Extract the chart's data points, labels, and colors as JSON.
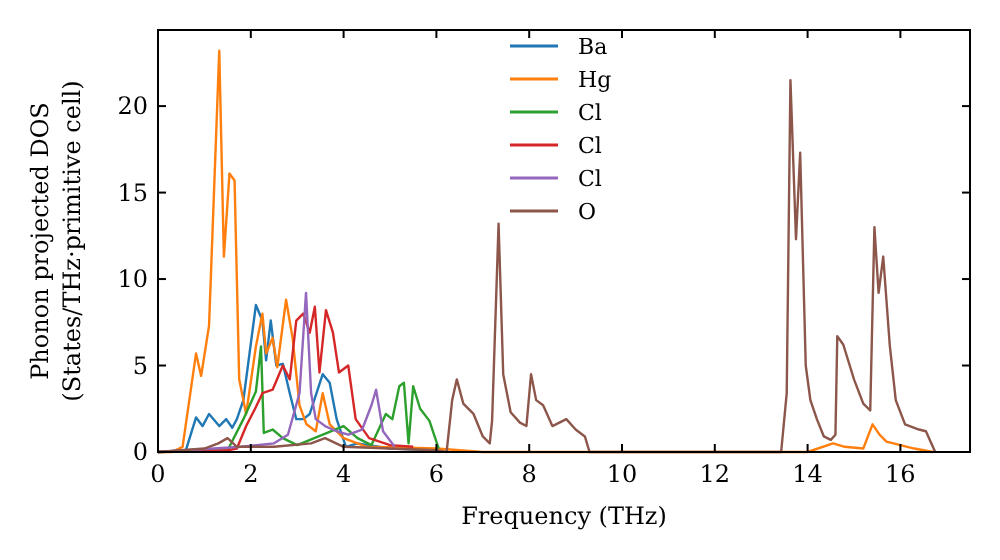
{
  "chart_data": {
    "type": "line",
    "xlabel": "Frequency (THz)",
    "ylabel": "Phonon projected DOS\n(States/THz·primitive cell)",
    "xlim": [
      0,
      17.5
    ],
    "ylim": [
      0,
      24.4
    ],
    "xticks": [
      0,
      2,
      4,
      6,
      8,
      10,
      12,
      14,
      16
    ],
    "yticks": [
      0,
      5,
      10,
      15,
      20
    ],
    "grid": false,
    "legend": "top",
    "marker": "none",
    "line_style": "solid",
    "series": [
      {
        "name": "Ba",
        "color": "#1f77b4",
        "x": [
          0,
          0.6,
          0.82,
          0.96,
          1.1,
          1.32,
          1.47,
          1.6,
          1.7,
          1.84,
          2.11,
          2.25,
          2.33,
          2.43,
          2.55,
          2.69,
          2.84,
          2.98,
          3.13,
          3.27,
          3.55,
          3.7,
          3.85,
          4.05,
          4.3,
          5,
          6
        ],
        "values": [
          0,
          0.1,
          2.0,
          1.5,
          2.2,
          1.5,
          1.9,
          1.4,
          1.9,
          3.0,
          8.5,
          7.6,
          5.3,
          7.6,
          5.0,
          5.1,
          3.4,
          1.9,
          1.9,
          2.2,
          4.5,
          4.0,
          1.9,
          0.3,
          0.5,
          0.2,
          0.1
        ]
      },
      {
        "name": "Hg",
        "color": "#ff7f0e",
        "x": [
          0,
          0.3,
          0.53,
          0.82,
          0.93,
          1.1,
          1.32,
          1.42,
          1.54,
          1.65,
          1.75,
          1.9,
          2.11,
          2.25,
          2.33,
          2.47,
          2.57,
          2.76,
          2.9,
          3.05,
          3.2,
          3.4,
          3.55,
          3.7,
          4.0,
          4.5,
          6,
          7,
          14,
          14.55,
          14.8,
          15.2,
          15.4,
          15.55,
          15.7,
          16.3,
          16.7
        ],
        "values": [
          0,
          0,
          0.3,
          5.7,
          4.4,
          7.3,
          23.2,
          11.3,
          16.1,
          15.7,
          4.2,
          2.2,
          6.1,
          8.0,
          5.7,
          6.6,
          4.9,
          8.8,
          6.6,
          2.7,
          1.6,
          1.2,
          3.4,
          1.6,
          0.8,
          0.3,
          0.2,
          0,
          0,
          0.5,
          0.3,
          0.2,
          1.6,
          1.0,
          0.6,
          0.2,
          0
        ]
      },
      {
        "name": "Cl",
        "color": "#2ca02c",
        "x": [
          0,
          1.5,
          1.84,
          2.11,
          2.22,
          2.28,
          2.47,
          2.69,
          3.0,
          4.0,
          4.3,
          4.6,
          4.91,
          5.05,
          5.2,
          5.3,
          5.4,
          5.5,
          5.65,
          5.85,
          6.05
        ],
        "values": [
          0,
          0.1,
          1.9,
          3.5,
          6.1,
          1.1,
          1.3,
          0.8,
          0.4,
          1.5,
          0.8,
          0.4,
          2.2,
          1.9,
          3.8,
          4.0,
          0.5,
          3.8,
          2.5,
          1.8,
          0.2
        ]
      },
      {
        "name": "Cl",
        "color": "#d62728",
        "x": [
          0,
          1.5,
          1.7,
          1.9,
          2.11,
          2.25,
          2.47,
          2.69,
          2.84,
          2.98,
          3.13,
          3.27,
          3.38,
          3.48,
          3.62,
          3.77,
          3.9,
          4.1,
          4.26,
          4.55,
          5,
          5.5
        ],
        "values": [
          0,
          0.1,
          0.2,
          1.5,
          2.6,
          3.4,
          3.6,
          5.0,
          4.2,
          7.6,
          8.0,
          6.9,
          8.4,
          4.6,
          8.2,
          6.9,
          4.6,
          5.0,
          1.9,
          0.8,
          0.4,
          0.3
        ]
      },
      {
        "name": "Cl",
        "color": "#9467bd",
        "x": [
          0,
          1.8,
          2.5,
          2.8,
          3.05,
          3.19,
          3.3,
          3.4,
          3.6,
          3.85,
          4.1,
          4.4,
          4.6,
          4.7,
          4.85,
          5.1
        ],
        "values": [
          0,
          0.3,
          0.5,
          1.0,
          3.4,
          9.2,
          3.4,
          1.9,
          1.5,
          1.2,
          1.0,
          1.3,
          2.7,
          3.6,
          1.2,
          0.3
        ]
      },
      {
        "name": "O",
        "color": "#8c564b",
        "x": [
          0,
          1.0,
          1.3,
          1.5,
          1.7,
          2.5,
          3.3,
          3.6,
          4.0,
          5.0,
          6.0,
          6.22,
          6.34,
          6.44,
          6.58,
          6.8,
          7.0,
          7.15,
          7.2,
          7.34,
          7.44,
          7.6,
          7.8,
          7.94,
          8.04,
          8.15,
          8.3,
          8.5,
          8.8,
          9.0,
          9.2,
          9.3,
          13.43,
          13.55,
          13.63,
          13.75,
          13.84,
          13.96,
          14.06,
          14.2,
          14.35,
          14.5,
          14.6,
          14.64,
          14.77,
          15.0,
          15.2,
          15.35,
          15.44,
          15.53,
          15.63,
          15.77,
          15.9,
          16.1,
          16.4,
          16.55,
          16.75
        ],
        "values": [
          0,
          0.2,
          0.5,
          0.8,
          0.3,
          0.3,
          0.5,
          0.8,
          0.3,
          0.2,
          0.1,
          0,
          3.0,
          4.2,
          2.8,
          2.2,
          0.9,
          0.5,
          1.8,
          13.2,
          4.5,
          2.3,
          1.7,
          1.5,
          4.5,
          3.0,
          2.7,
          1.5,
          1.9,
          1.3,
          0.9,
          0,
          0,
          3.4,
          21.5,
          12.3,
          17.3,
          5.0,
          3.0,
          1.9,
          0.9,
          0.7,
          1.0,
          6.7,
          6.2,
          4.2,
          2.8,
          2.4,
          13.0,
          9.2,
          11.3,
          6.2,
          3.0,
          1.6,
          1.3,
          1.2,
          0
        ]
      }
    ]
  }
}
